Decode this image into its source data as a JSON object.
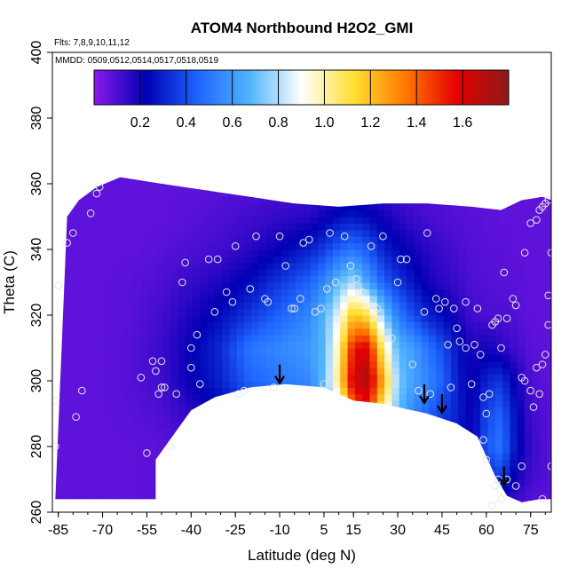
{
  "chart_data": {
    "type": "heatmap",
    "title": "ATOM4 Northbound H2O2_GMI",
    "subtitle_flights": "Flts: 7,8,9,10,11,12",
    "subtitle_dates": "MMDD: 0509,0512,0514,0517,0518,0519",
    "xlabel": "Latitude (deg N)",
    "ylabel": "Theta (C)",
    "xlim": [
      -87,
      82
    ],
    "ylim": [
      260,
      400
    ],
    "x_ticks": [
      -85,
      -70,
      -55,
      -40,
      -25,
      -10,
      5,
      15,
      30,
      45,
      60,
      75
    ],
    "y_ticks": [
      260,
      280,
      300,
      320,
      340,
      360,
      380,
      400
    ],
    "colorbar": {
      "range": [
        0,
        1.8
      ],
      "ticks": [
        0.2,
        0.4,
        0.6,
        0.8,
        1.0,
        1.2,
        1.4,
        1.6
      ],
      "tick_labels": [
        "0.2",
        "0.4",
        "0.6",
        "0.8",
        "1.0",
        "1.2",
        "1.4",
        "1.6"
      ],
      "colors": [
        "#8a1aeb",
        "#0000b4",
        "#1e64ff",
        "#50b4ff",
        "#ffffff",
        "#ffe033",
        "#ff7a00",
        "#e60000",
        "#8b1a1a"
      ]
    },
    "domain_top": [
      [
        -82,
        350
      ],
      [
        -78,
        355
      ],
      [
        -72,
        359
      ],
      [
        -64,
        362
      ],
      [
        -50,
        360
      ],
      [
        -35,
        358
      ],
      [
        -20,
        356
      ],
      [
        -5,
        354
      ],
      [
        10,
        353
      ],
      [
        25,
        354
      ],
      [
        40,
        354
      ],
      [
        55,
        353
      ],
      [
        65,
        352
      ],
      [
        72,
        355
      ],
      [
        79,
        356
      ],
      [
        82,
        355
      ]
    ],
    "domain_bottom": [
      [
        -86,
        264
      ],
      [
        -52,
        264
      ],
      [
        -52,
        276
      ],
      [
        -48,
        281
      ],
      [
        -40,
        291
      ],
      [
        -32,
        295
      ],
      [
        -20,
        298
      ],
      [
        -8,
        299
      ],
      [
        5,
        298
      ],
      [
        15,
        294
      ],
      [
        25,
        293
      ],
      [
        40,
        290
      ],
      [
        50,
        287
      ],
      [
        57,
        283
      ],
      [
        60,
        277
      ],
      [
        63,
        271
      ],
      [
        67,
        265
      ],
      [
        72,
        263
      ],
      [
        78,
        264
      ],
      [
        82,
        264
      ]
    ],
    "gridded_values": {
      "lat": [
        -87,
        -80,
        -70,
        -60,
        -50,
        -40,
        -30,
        -20,
        -10,
        0,
        5,
        10,
        15,
        20,
        25,
        30,
        35,
        40,
        45,
        50,
        55,
        60,
        65,
        70,
        75,
        82
      ],
      "theta": [
        262,
        270,
        280,
        290,
        300,
        310,
        320,
        330,
        340,
        350,
        360
      ],
      "values": [
        [
          0.07,
          0.07,
          0.07,
          0.07,
          0.08,
          0.08,
          0.1,
          0.12,
          0.16,
          0.2,
          0.24,
          0.28,
          0.3,
          0.3,
          0.28,
          0.26,
          0.24,
          0.22,
          0.2,
          0.18,
          0.16,
          0.14,
          0.12,
          0.1,
          0.08,
          0.07
        ],
        [
          0.07,
          0.07,
          0.07,
          0.07,
          0.08,
          0.09,
          0.11,
          0.14,
          0.2,
          0.26,
          0.32,
          0.38,
          0.42,
          0.45,
          0.44,
          0.4,
          0.35,
          0.3,
          0.26,
          0.22,
          0.18,
          0.3,
          0.35,
          0.2,
          0.12,
          0.08
        ],
        [
          0.07,
          0.07,
          0.07,
          0.07,
          0.08,
          0.1,
          0.13,
          0.18,
          0.28,
          0.36,
          0.45,
          0.55,
          0.7,
          0.75,
          0.7,
          0.6,
          0.5,
          0.4,
          0.33,
          0.26,
          0.2,
          0.42,
          0.5,
          0.26,
          0.14,
          0.08
        ],
        [
          0.07,
          0.07,
          0.07,
          0.08,
          0.1,
          0.15,
          0.22,
          0.3,
          0.4,
          0.5,
          0.6,
          0.8,
          1.35,
          1.5,
          1.0,
          0.7,
          0.55,
          0.45,
          0.36,
          0.3,
          0.2,
          0.38,
          0.45,
          0.25,
          0.12,
          0.08
        ],
        [
          0.07,
          0.07,
          0.07,
          0.09,
          0.12,
          0.22,
          0.3,
          0.45,
          0.5,
          0.55,
          0.7,
          1.05,
          1.65,
          1.7,
          1.25,
          0.75,
          0.62,
          0.55,
          0.45,
          0.3,
          0.2,
          0.3,
          0.35,
          0.2,
          0.1,
          0.07
        ],
        [
          0.07,
          0.07,
          0.07,
          0.09,
          0.13,
          0.22,
          0.32,
          0.5,
          0.55,
          0.6,
          0.68,
          1.0,
          1.55,
          1.6,
          1.05,
          0.68,
          0.62,
          0.5,
          0.4,
          0.28,
          0.18,
          0.2,
          0.16,
          0.12,
          0.08,
          0.07
        ],
        [
          0.07,
          0.07,
          0.07,
          0.08,
          0.12,
          0.18,
          0.25,
          0.35,
          0.45,
          0.55,
          0.68,
          0.88,
          1.2,
          1.1,
          0.75,
          0.52,
          0.4,
          0.3,
          0.25,
          0.18,
          0.12,
          0.1,
          0.1,
          0.09,
          0.07,
          0.07
        ],
        [
          0.07,
          0.07,
          0.07,
          0.08,
          0.1,
          0.14,
          0.18,
          0.25,
          0.35,
          0.45,
          0.55,
          0.7,
          0.8,
          0.62,
          0.45,
          0.35,
          0.27,
          0.2,
          0.16,
          0.13,
          0.1,
          0.09,
          0.08,
          0.08,
          0.07,
          0.07
        ],
        [
          0.07,
          0.07,
          0.07,
          0.07,
          0.08,
          0.1,
          0.12,
          0.16,
          0.22,
          0.3,
          0.36,
          0.45,
          0.5,
          0.42,
          0.3,
          0.24,
          0.2,
          0.16,
          0.13,
          0.11,
          0.09,
          0.08,
          0.08,
          0.07,
          0.07,
          0.07
        ],
        [
          0.07,
          0.07,
          0.07,
          0.07,
          0.07,
          0.08,
          0.1,
          0.12,
          0.14,
          0.16,
          0.2,
          0.25,
          0.27,
          0.24,
          0.2,
          0.16,
          0.13,
          0.11,
          0.1,
          0.09,
          0.08,
          0.08,
          0.07,
          0.07,
          0.07,
          0.07
        ],
        [
          0.07,
          0.07,
          0.07,
          0.07,
          0.07,
          0.07,
          0.08,
          0.09,
          0.1,
          0.11,
          0.12,
          0.14,
          0.15,
          0.14,
          0.12,
          0.11,
          0.1,
          0.09,
          0.09,
          0.08,
          0.08,
          0.07,
          0.07,
          0.07,
          0.07,
          0.07
        ]
      ]
    },
    "sample_points": [
      [
        -86,
        294
      ],
      [
        -86,
        280
      ],
      [
        -85,
        329
      ],
      [
        -82,
        342
      ],
      [
        -80,
        345
      ],
      [
        -79,
        289
      ],
      [
        -77,
        297
      ],
      [
        -74,
        351
      ],
      [
        -72,
        357
      ],
      [
        -71,
        359
      ],
      [
        -57,
        301
      ],
      [
        -55,
        278
      ],
      [
        -53,
        306
      ],
      [
        -52,
        303
      ],
      [
        -51,
        296
      ],
      [
        -50,
        298
      ],
      [
        -50,
        306
      ],
      [
        -49,
        298
      ],
      [
        -47,
        280
      ],
      [
        -45,
        296
      ],
      [
        -43,
        330
      ],
      [
        -42,
        336
      ],
      [
        -40,
        304
      ],
      [
        -40,
        310
      ],
      [
        -38,
        314
      ],
      [
        -37,
        299
      ],
      [
        -34,
        337
      ],
      [
        -32,
        321
      ],
      [
        -31,
        337
      ],
      [
        -28,
        327
      ],
      [
        -26,
        324
      ],
      [
        -25,
        341
      ],
      [
        -24,
        296
      ],
      [
        -22,
        297
      ],
      [
        -20,
        328
      ],
      [
        -18,
        344
      ],
      [
        -15,
        325
      ],
      [
        -14,
        324
      ],
      [
        -12,
        298
      ],
      [
        -10,
        344
      ],
      [
        -8,
        335
      ],
      [
        -6,
        322
      ],
      [
        -5,
        322
      ],
      [
        -3,
        325
      ],
      [
        -2,
        342
      ],
      [
        0,
        343
      ],
      [
        2,
        321
      ],
      [
        4,
        322
      ],
      [
        5,
        299
      ],
      [
        6,
        328
      ],
      [
        7,
        345
      ],
      [
        9,
        330
      ],
      [
        12,
        344
      ],
      [
        14,
        335
      ],
      [
        16,
        331
      ],
      [
        18,
        327
      ],
      [
        21,
        341
      ],
      [
        23,
        322
      ],
      [
        25,
        344
      ],
      [
        28,
        313
      ],
      [
        30,
        330
      ],
      [
        31,
        337
      ],
      [
        33,
        337
      ],
      [
        35,
        305
      ],
      [
        37,
        297
      ],
      [
        39,
        321
      ],
      [
        40,
        345
      ],
      [
        41,
        296
      ],
      [
        43,
        325
      ],
      [
        44,
        322
      ],
      [
        46,
        324
      ],
      [
        47,
        311
      ],
      [
        48,
        298
      ],
      [
        49,
        322
      ],
      [
        50,
        316
      ],
      [
        51,
        312
      ],
      [
        53,
        324
      ],
      [
        53,
        310
      ],
      [
        55,
        299
      ],
      [
        56,
        311
      ],
      [
        57,
        322
      ],
      [
        58,
        308
      ],
      [
        59,
        295
      ],
      [
        61,
        296
      ],
      [
        62,
        317
      ],
      [
        63,
        318
      ],
      [
        64,
        319
      ],
      [
        65,
        310
      ],
      [
        66,
        333
      ],
      [
        67,
        319
      ],
      [
        69,
        325
      ],
      [
        70,
        323
      ],
      [
        72,
        301
      ],
      [
        73,
        300
      ],
      [
        75,
        297
      ],
      [
        76,
        292
      ],
      [
        77,
        304
      ],
      [
        78,
        296
      ],
      [
        79,
        305
      ],
      [
        80,
        308
      ],
      [
        81,
        317
      ],
      [
        81,
        326
      ],
      [
        82,
        339
      ],
      [
        77,
        349
      ],
      [
        78,
        352
      ],
      [
        79,
        353
      ],
      [
        80,
        354
      ],
      [
        81,
        355
      ],
      [
        75,
        348
      ],
      [
        73,
        339
      ],
      [
        62,
        262
      ],
      [
        65,
        264
      ],
      [
        63,
        268
      ],
      [
        67,
        270
      ],
      [
        60,
        290
      ],
      [
        59,
        282
      ],
      [
        60,
        276
      ],
      [
        64,
        270
      ],
      [
        70,
        268
      ],
      [
        72,
        274
      ],
      [
        82,
        274
      ],
      [
        79,
        264
      ]
    ],
    "flight_arrows": [
      [
        -10,
        299
      ],
      [
        39,
        293
      ],
      [
        45,
        290
      ],
      [
        66,
        268
      ]
    ]
  }
}
